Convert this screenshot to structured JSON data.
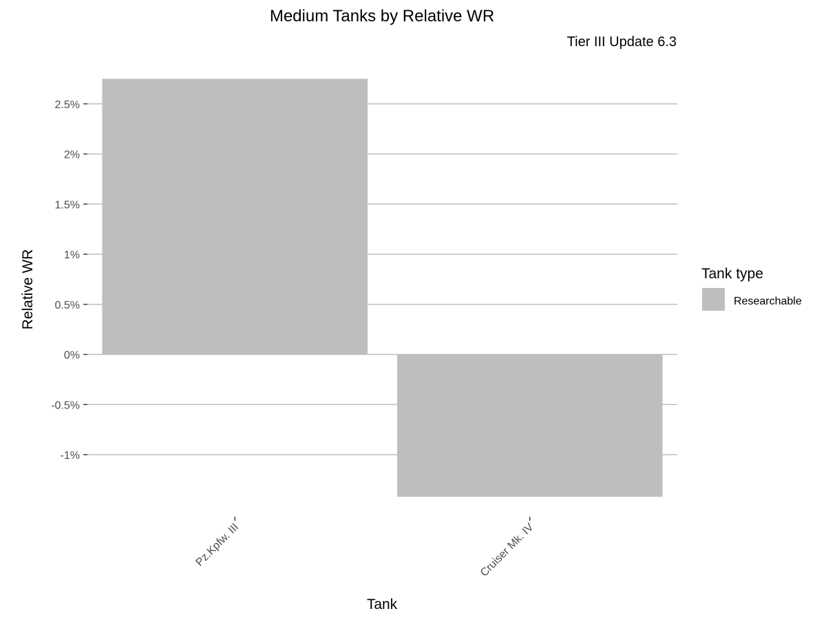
{
  "chart_data": {
    "type": "bar",
    "title": "Medium Tanks by Relative WR",
    "subtitle": "Tier III Update 6.3",
    "xlabel": "Tank",
    "ylabel": "Relative WR",
    "categories": [
      "Pz.Kpfw. III",
      "Cruiser Mk. IV"
    ],
    "series": [
      {
        "name": "Researchable",
        "values": [
          2.75,
          -1.42
        ],
        "color": "#bebebe"
      }
    ],
    "y_ticks": [
      -1,
      -0.5,
      0,
      0.5,
      1,
      1.5,
      2,
      2.5
    ],
    "y_tick_labels": [
      "-1%",
      "-0.5%",
      "0%",
      "0.5%",
      "1%",
      "1.5%",
      "2%",
      "2.5%"
    ],
    "ylim": [
      -1.55,
      2.88
    ],
    "grid": true,
    "legend": {
      "title": "Tank type",
      "position": "right",
      "items": [
        {
          "label": "Researchable",
          "color": "#bebebe"
        }
      ]
    },
    "colors": {
      "bar": "#bebebe",
      "grid": "#bebebe",
      "background": "#ffffff"
    }
  }
}
